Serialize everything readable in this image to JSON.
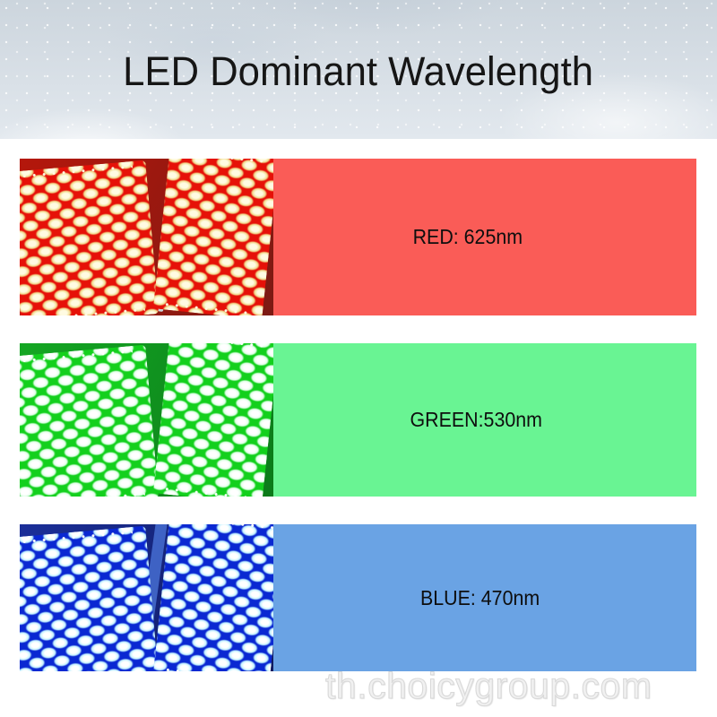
{
  "header": {
    "title": "LED Dominant Wavelength"
  },
  "rows": [
    {
      "id": "red",
      "label": "RED: 625nm",
      "color_name": "RED",
      "wavelength_nm": 625,
      "band_color": "#fa5c57",
      "panel_color": "#e61108",
      "led_color": "#f6e7a6",
      "photo": "two-red-led-panel-heads"
    },
    {
      "id": "green",
      "label": "GREEN:530nm",
      "color_name": "GREEN",
      "wavelength_nm": 530,
      "band_color": "#69f493",
      "panel_color": "#13d01d",
      "led_color": "#ffffff",
      "photo": "two-green-led-panel-heads"
    },
    {
      "id": "blue",
      "label": "BLUE: 470nm",
      "color_name": "BLUE",
      "wavelength_nm": 470,
      "band_color": "#6aa3e4",
      "panel_color": "#0a28d2",
      "led_color": "#ffffff",
      "photo": "two-blue-led-panel-heads"
    }
  ],
  "watermark": "th.choicygroup.com"
}
